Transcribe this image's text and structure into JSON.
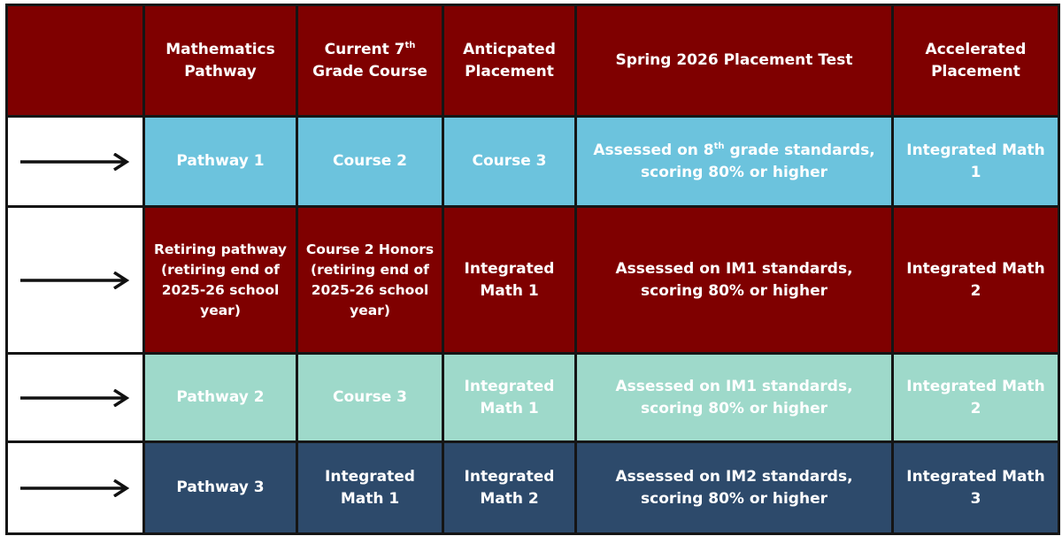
{
  "colors": {
    "header": "#7f0000",
    "row_1": "#6cc3dd",
    "row_2": "#7f0000",
    "row_3": "#9ed9ca",
    "row_4": "#2d4a6b",
    "arrow": "#111111",
    "border": "#151515"
  },
  "icons": {
    "row_arrow": "right-arrow-icon"
  },
  "headers": {
    "pathway": "Mathematics Pathway",
    "current_course": "Current 7",
    "current_course_sup": "th",
    "current_course_rest": "Grade Course",
    "anticipated": "Anticpated Placement",
    "test": "Spring 2026 Placement Test",
    "accelerated": "Accelerated Placement"
  },
  "rows": [
    {
      "pathway": "Pathway 1",
      "course": "Course 2",
      "anticipated": "Course 3",
      "test_a": "Assessed on 8",
      "test_sup": "th",
      "test_b": " grade standards, scoring 80% or higher",
      "accelerated": "Integrated Math 1"
    },
    {
      "pathway": "Retiring pathway (retiring end of  2025-26 school year)",
      "course": "Course 2 Honors (retiring end of 2025-26 school year)",
      "anticipated": "Integrated Math 1",
      "test": "Assessed on IM1 standards, scoring 80% or higher",
      "accelerated": "Integrated Math 2"
    },
    {
      "pathway": "Pathway 2",
      "course": "Course 3",
      "anticipated": "Integrated Math 1",
      "test": "Assessed on IM1 standards, scoring 80% or higher",
      "accelerated": "Integrated Math 2"
    },
    {
      "pathway": "Pathway 3",
      "course": "Integrated Math 1",
      "anticipated": "Integrated Math 2",
      "test": "Assessed on IM2 standards, scoring 80% or higher",
      "accelerated": "Integrated Math 3"
    }
  ]
}
